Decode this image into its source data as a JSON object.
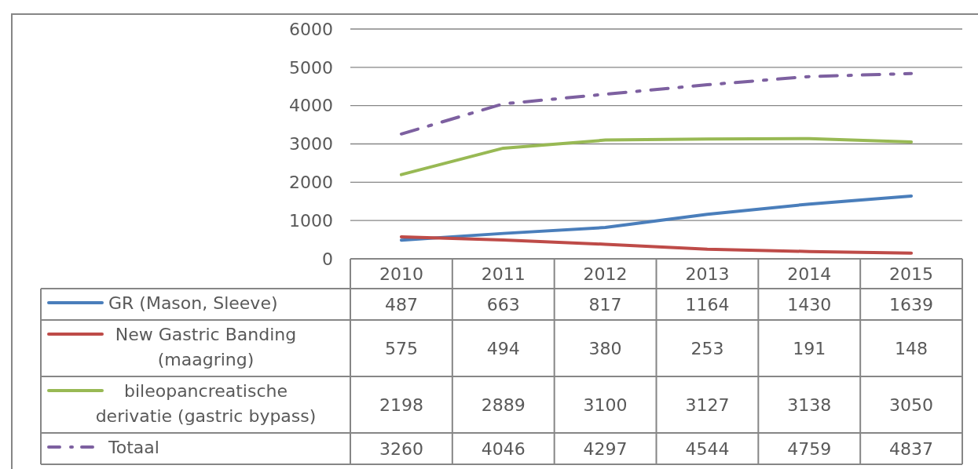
{
  "chart_data": {
    "type": "line",
    "categories": [
      "2010",
      "2011",
      "2012",
      "2013",
      "2014",
      "2015"
    ],
    "series": [
      {
        "name": "GR (Mason, Sleeve)",
        "color": "#4a7ebb",
        "values": [
          487,
          663,
          817,
          1164,
          1430,
          1639
        ]
      },
      {
        "name": "New Gastric Banding (maagring)",
        "color": "#be4b48",
        "values": [
          575,
          494,
          380,
          253,
          191,
          148
        ]
      },
      {
        "name": "bileopancreatische derivatie (gastric bypass)",
        "color": "#98b954",
        "values": [
          2198,
          2889,
          3100,
          3127,
          3138,
          3050
        ]
      },
      {
        "name": "Totaal",
        "color": "#7d60a0",
        "values": [
          3260,
          4046,
          4297,
          4544,
          4759,
          4837
        ],
        "line_style": "dashed"
      }
    ],
    "ylim": [
      0,
      6000
    ],
    "yticks": [
      0,
      1000,
      2000,
      3000,
      4000,
      5000,
      6000
    ],
    "grid": "y",
    "legend": "bottom",
    "data_labels": true,
    "marker": "none",
    "line_style": "solid"
  }
}
